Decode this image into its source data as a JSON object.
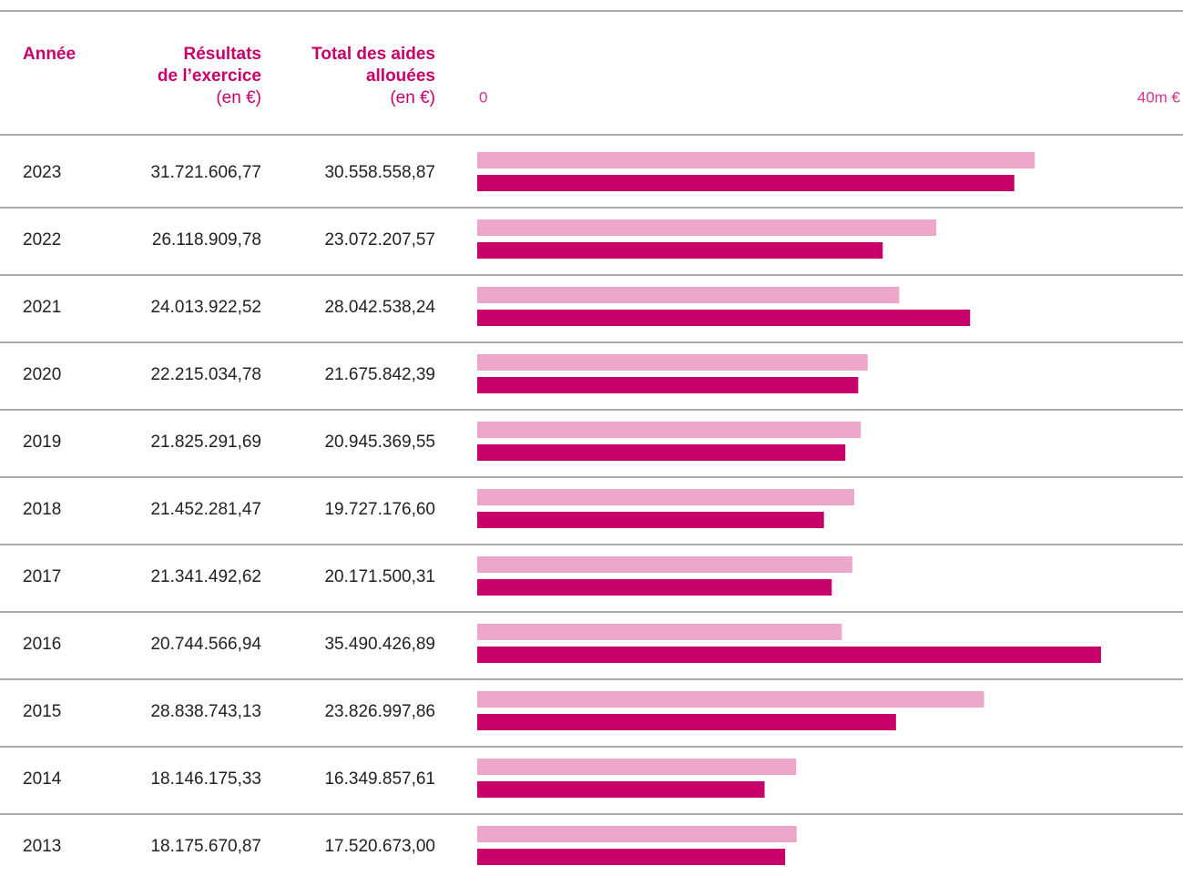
{
  "table": {
    "headers": [
      [
        "Année"
      ],
      [
        "Résultats",
        "de l’exercice",
        "(en €)"
      ],
      [
        "Total des aides",
        "allouées",
        "(en €)"
      ]
    ],
    "rows": [
      [
        "2023",
        "31.721.606,77",
        "30.558.558,87"
      ],
      [
        "2022",
        "26.118.909,78",
        "23.072.207,57"
      ],
      [
        "2021",
        "24.013.922,52",
        "28.042.538,24"
      ],
      [
        "2020",
        "22.215.034,78",
        "21.675.842,39"
      ],
      [
        "2019",
        "21.825.291,69",
        "20.945.369,55"
      ],
      [
        "2018",
        "21.452.281,47",
        "19.727.176,60"
      ],
      [
        "2017",
        "21.341.492,62",
        "20.171.500,31"
      ],
      [
        "2016",
        "20.744.566,94",
        "35.490.426,89"
      ],
      [
        "2015",
        "28.838.743,13",
        "23.826.997,86"
      ],
      [
        "2014",
        "18.146.175,33",
        "16.349.857,61"
      ],
      [
        "2013",
        "18.175.670,87",
        "17.520.673,00"
      ]
    ]
  },
  "chart_data": {
    "type": "bar",
    "orientation": "horizontal",
    "xlim": [
      0,
      40000000
    ],
    "xticks": [
      0,
      {
        "value": 40000000,
        "label": "40m €"
      }
    ],
    "colors": [
      "#eca7cb",
      "#c8006a"
    ]
  }
}
